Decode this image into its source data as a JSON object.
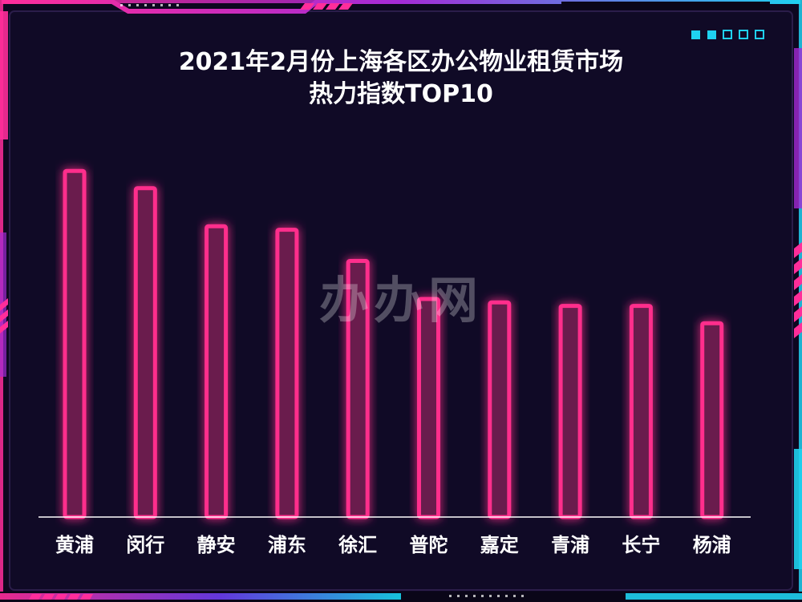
{
  "chart_data": {
    "type": "bar",
    "title": "2021年2月份上海各区办公物业租赁市场热力指数TOP10",
    "title_lines": [
      "2021年2月份上海各区办公物业租赁市场",
      "热力指数TOP10"
    ],
    "categories": [
      "黄浦",
      "闵行",
      "静安",
      "浦东",
      "徐汇",
      "普陀",
      "嘉定",
      "青浦",
      "长宁",
      "杨浦"
    ],
    "values": [
      100,
      95,
      84,
      83,
      74,
      63,
      62,
      61,
      61,
      56
    ],
    "ylim": [
      0,
      110
    ],
    "grid": false,
    "legend": "none",
    "colors": {
      "bar": "#ff2d8c",
      "bar_fill": "#6a1a4d",
      "axis": "#ffffff",
      "label": "#ffffff",
      "background": "#0d0720"
    }
  },
  "watermark": {
    "text": "办办网"
  }
}
